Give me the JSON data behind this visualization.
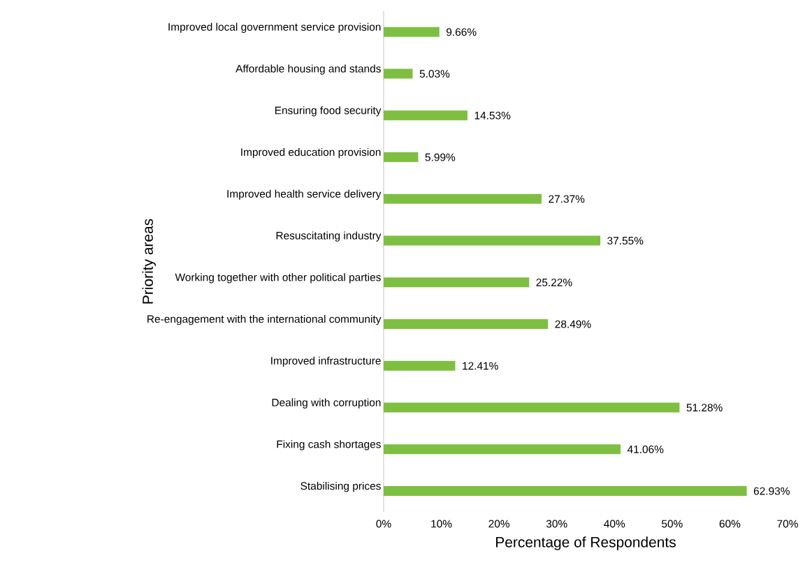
{
  "chart_data": {
    "type": "bar",
    "orientation": "horizontal",
    "xlabel": "Percentage of Respondents",
    "ylabel": "Priority areas",
    "categories": [
      "Improved local government service provision",
      "Affordable housing and stands",
      "Ensuring food security",
      "Improved education provision",
      "Improved health service delivery",
      "Resuscitating industry",
      "Working together with other political parties",
      "Re-engagement with the international community",
      "Improved infrastructure",
      "Dealing with corruption",
      "Fixing cash shortages",
      "Stabilising prices"
    ],
    "values": [
      9.66,
      5.03,
      14.53,
      5.99,
      27.37,
      37.55,
      25.22,
      28.49,
      12.41,
      51.28,
      41.06,
      62.93
    ],
    "value_labels": [
      "9.66%",
      "5.03%",
      "14.53%",
      "5.99%",
      "27.37%",
      "37.55%",
      "25.22%",
      "28.49%",
      "12.41%",
      "51.28%",
      "41.06%",
      "62.93%"
    ],
    "color": "#7ebf42",
    "xlim": [
      0,
      70
    ],
    "xticks": [
      {
        "value": 0,
        "label": "0%"
      },
      {
        "value": 10,
        "label": "10%"
      },
      {
        "value": 20,
        "label": "20%"
      },
      {
        "value": 30,
        "label": "30%"
      },
      {
        "value": 40,
        "label": "40%"
      },
      {
        "value": 50,
        "label": "50%"
      },
      {
        "value": 60,
        "label": "60%"
      },
      {
        "value": 70,
        "label": "70%"
      }
    ],
    "grid": false
  }
}
